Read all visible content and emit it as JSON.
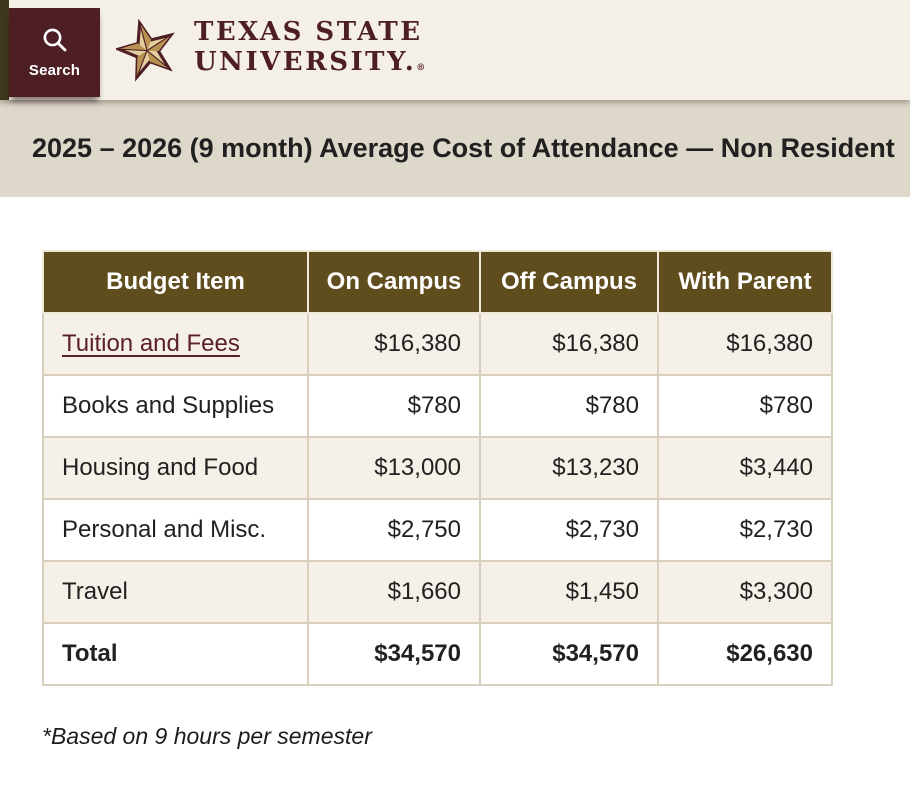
{
  "header": {
    "search": {
      "label": "Search",
      "icon": "magnifier"
    },
    "logo": {
      "line1": "TEXAS STATE",
      "line2": "UNIVERSITY.",
      "registered": "®"
    }
  },
  "title_bar": {
    "title": "2025 – 2026 (9 month) Average Cost of Attendance — Non Resident"
  },
  "table": {
    "columns": [
      "Budget Item",
      "On Campus",
      "Off Campus",
      "With Parent"
    ],
    "rows": [
      {
        "label": "Tuition and Fees",
        "link": true,
        "bold": false,
        "values": [
          "$16,380",
          "$16,380",
          "$16,380"
        ]
      },
      {
        "label": "Books and Supplies",
        "link": false,
        "bold": false,
        "values": [
          "$780",
          "$780",
          "$780"
        ]
      },
      {
        "label": "Housing and Food",
        "link": false,
        "bold": false,
        "values": [
          "$13,000",
          "$13,230",
          "$3,440"
        ]
      },
      {
        "label": "Personal and Misc.",
        "link": false,
        "bold": false,
        "values": [
          "$2,750",
          "$2,730",
          "$2,730"
        ]
      },
      {
        "label": "Travel",
        "link": false,
        "bold": false,
        "values": [
          "$1,660",
          "$1,450",
          "$3,300"
        ]
      },
      {
        "label": "Total",
        "link": false,
        "bold": true,
        "values": [
          "$34,570",
          "$34,570",
          "$26,630"
        ]
      }
    ]
  },
  "footnote": "*Based on 9 hours per semester",
  "colors": {
    "maroon": "#4e1e25",
    "link_maroon": "#5a2129",
    "table_header_brown": "#5f4d1e",
    "title_band": "#ded8ca",
    "header_cream": "#f4f0e7",
    "row_alternate": "#f5f1e8",
    "cell_border": "#d9cfbc",
    "star_gold_light": "#e3cf9d",
    "star_gold_dark": "#b89252",
    "edge_strip_olive": "#3e381c"
  }
}
